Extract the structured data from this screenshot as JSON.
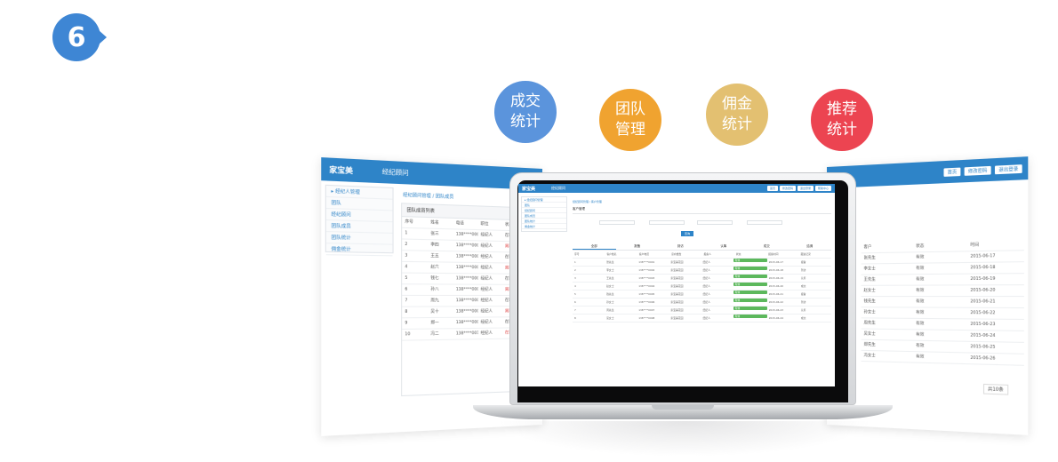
{
  "step_number": "6",
  "features": [
    {
      "label": "成交\n统计",
      "color": "#5b94dc"
    },
    {
      "label": "团队\n管理",
      "color": "#f0a330"
    },
    {
      "label": "佣金\n统计",
      "color": "#e3c071"
    },
    {
      "label": "推荐\n统计",
      "color": "#ec4451"
    }
  ],
  "left_panel": {
    "logo": "家宝美",
    "nav": "经纪顾问",
    "side_items": [
      "▸ 经纪人管理",
      "团队",
      "经纪顾问",
      "团队成员",
      "团队统计",
      "佣金统计"
    ],
    "crumb": "经纪顾问管理 / 团队成员",
    "box_title": "团队成员列表",
    "rows": [
      [
        "序号",
        "姓名",
        "电话",
        "职位",
        "状态"
      ],
      [
        "1",
        "张三",
        "138****0001",
        "经纪人",
        "在职"
      ],
      [
        "2",
        "李四",
        "138****0002",
        "经纪人",
        "离职"
      ],
      [
        "3",
        "王五",
        "138****0003",
        "经纪人",
        "在职"
      ],
      [
        "4",
        "赵六",
        "138****0004",
        "经纪人",
        "离职"
      ],
      [
        "5",
        "钱七",
        "138****0005",
        "经纪人",
        "在职"
      ],
      [
        "6",
        "孙八",
        "138****0006",
        "经纪人",
        "离职"
      ],
      [
        "7",
        "周九",
        "138****0007",
        "经纪人",
        "在职"
      ],
      [
        "8",
        "吴十",
        "138****0008",
        "经纪人",
        "离职"
      ],
      [
        "9",
        "郑一",
        "138****0009",
        "经纪人",
        "在职"
      ],
      [
        "10",
        "冯二",
        "138****0010",
        "经纪人",
        "在职"
      ]
    ]
  },
  "laptop_screen": {
    "logo": "家宝美",
    "nav": "经纪顾问",
    "buttons": [
      "首页",
      "修改密码",
      "退出登录",
      "帮助中心"
    ],
    "side_items": [
      "▸ 经纪顾问管理",
      "团队",
      "经纪顾问",
      "团队成员",
      "团队统计",
      "佣金统计"
    ],
    "crumb": "经纪顾问管理 / 客户管理",
    "section_title": "客户管理",
    "search_button": "查询",
    "tabs": [
      "全部",
      "报备",
      "到访",
      "认筹",
      "成交",
      "结佣"
    ],
    "rows": [
      [
        "序号",
        "客户姓名",
        "客户电话",
        "意向楼盘",
        "报备人",
        "状态",
        "报备时间",
        "跟进记录"
      ],
      [
        "1",
        "张先生",
        "138****0001",
        "家宝美花园",
        "经纪人",
        "有效",
        "2015-06-17",
        "报备"
      ],
      [
        "2",
        "李女士",
        "138****0002",
        "家宝美花园",
        "经纪人",
        "有效",
        "2015-06-18",
        "到访"
      ],
      [
        "3",
        "王先生",
        "138****0003",
        "家宝美花园",
        "经纪人",
        "有效",
        "2015-06-19",
        "认筹"
      ],
      [
        "4",
        "赵女士",
        "138****0004",
        "家宝美花园",
        "经纪人",
        "有效",
        "2015-06-20",
        "成交"
      ],
      [
        "5",
        "钱先生",
        "138****0005",
        "家宝美花园",
        "经纪人",
        "有效",
        "2015-06-21",
        "报备"
      ],
      [
        "6",
        "孙女士",
        "138****0006",
        "家宝美花园",
        "经纪人",
        "有效",
        "2015-06-22",
        "到访"
      ],
      [
        "7",
        "周先生",
        "138****0007",
        "家宝美花园",
        "经纪人",
        "有效",
        "2015-06-23",
        "认筹"
      ],
      [
        "8",
        "吴女士",
        "138****0008",
        "家宝美花园",
        "经纪人",
        "有效",
        "2015-06-24",
        "成交"
      ]
    ]
  },
  "right_panel": {
    "buttons": [
      "首页",
      "修改密码",
      "退出登录"
    ],
    "rows": [
      [
        "客户",
        "状态",
        "时间"
      ],
      [
        "张先生",
        "有效",
        "2015-06-17"
      ],
      [
        "李女士",
        "有效",
        "2015-06-18"
      ],
      [
        "王先生",
        "有效",
        "2015-06-19"
      ],
      [
        "赵女士",
        "有效",
        "2015-06-20"
      ],
      [
        "钱先生",
        "有效",
        "2015-06-21"
      ],
      [
        "孙女士",
        "有效",
        "2015-06-22"
      ],
      [
        "周先生",
        "有效",
        "2015-06-23"
      ],
      [
        "吴女士",
        "有效",
        "2015-06-24"
      ],
      [
        "郑先生",
        "有效",
        "2015-06-25"
      ],
      [
        "冯女士",
        "有效",
        "2015-06-26"
      ]
    ],
    "pagination": "共10条"
  }
}
